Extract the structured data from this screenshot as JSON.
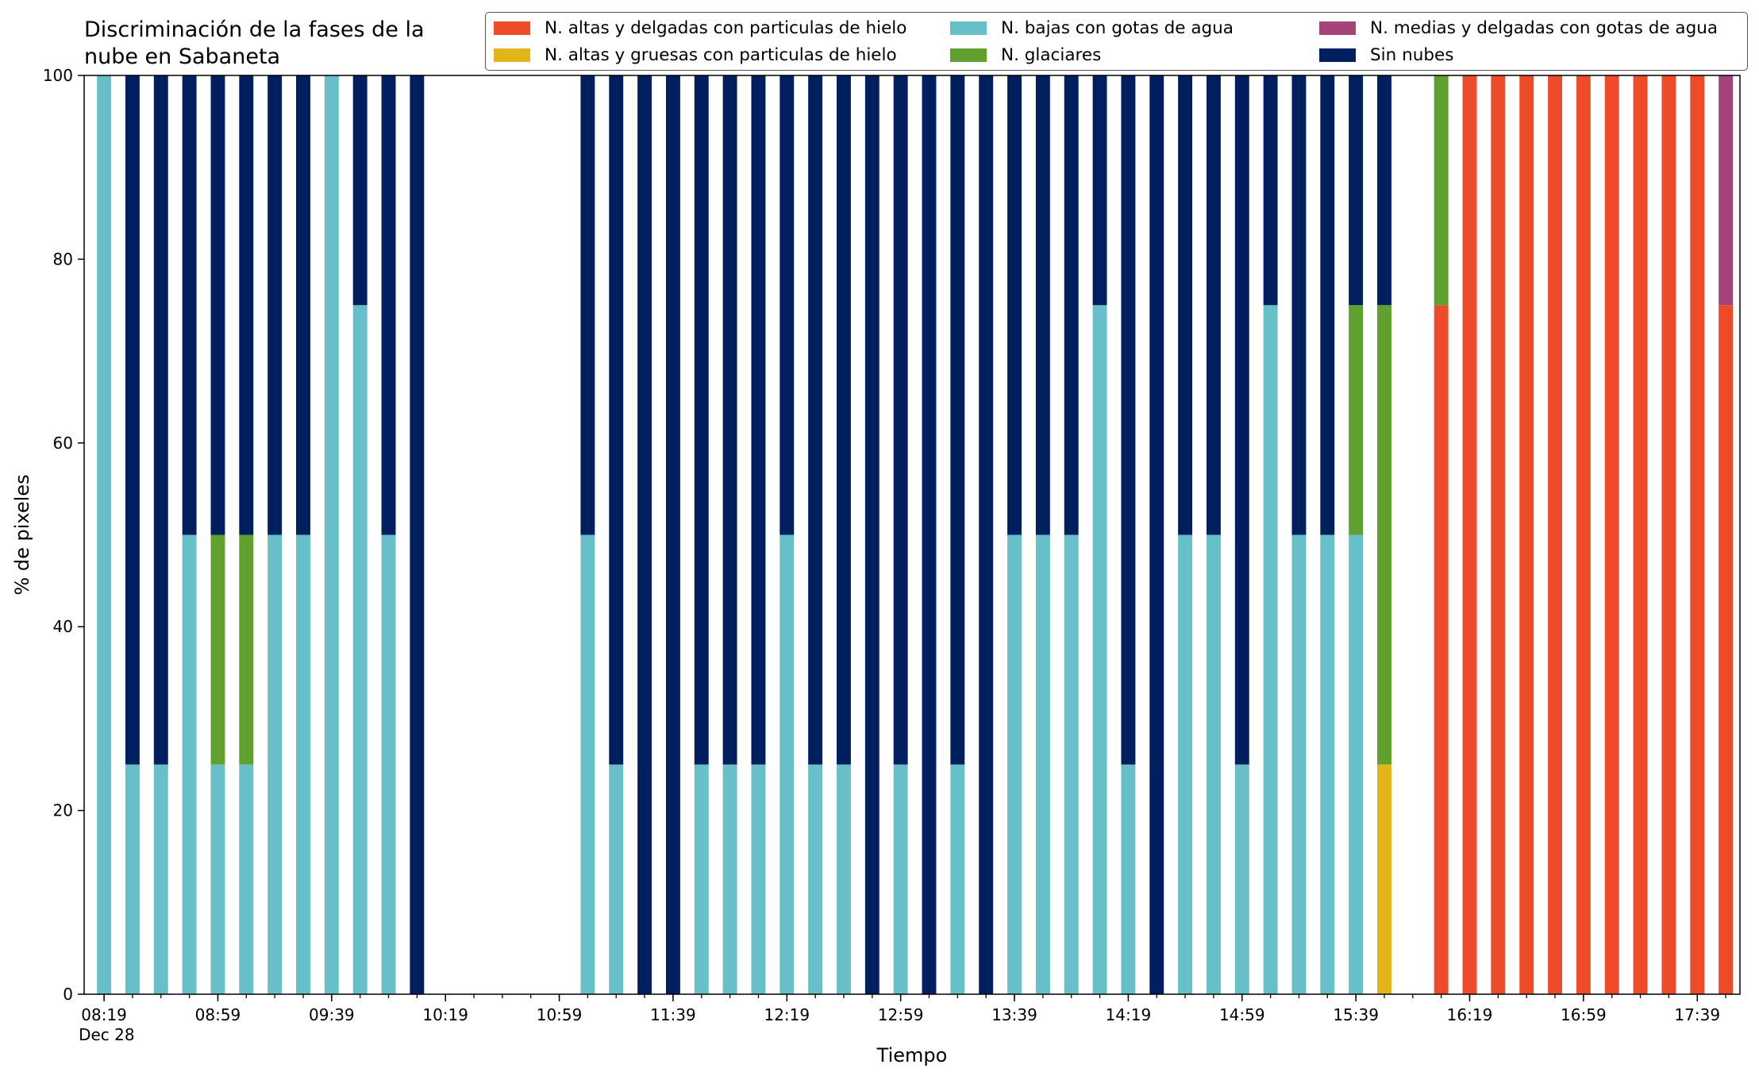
{
  "chart_data": {
    "type": "bar",
    "stacked": true,
    "title_lines": [
      "Discriminación de la fases de la",
      "nube en Sabaneta"
    ],
    "xlabel": "Tiempo",
    "ylabel": "% de pixeles",
    "ylim": [
      0,
      100
    ],
    "yticks": [
      0,
      20,
      40,
      60,
      80,
      100
    ],
    "xlim_minutes": [
      -7,
      575
    ],
    "bar_width_minutes": 5,
    "x_minor_tick_step_minutes": 10,
    "x_major_tick_labels": [
      "08:19",
      "08:59",
      "09:39",
      "10:19",
      "10:59",
      "11:39",
      "12:19",
      "12:59",
      "13:39",
      "14:19",
      "14:59",
      "15:39",
      "16:19",
      "16:59",
      "17:39"
    ],
    "x_major_tick_step_minutes": 40,
    "x_date_label": "Dec 28",
    "grid": false,
    "legend_position": "top-right",
    "x": [
      "08:19",
      "08:29",
      "08:39",
      "08:49",
      "08:59",
      "09:09",
      "09:19",
      "09:29",
      "09:39",
      "09:49",
      "09:59",
      "10:09",
      "11:09",
      "11:19",
      "11:29",
      "11:39",
      "11:49",
      "11:59",
      "12:09",
      "12:19",
      "12:29",
      "12:39",
      "12:49",
      "12:59",
      "13:09",
      "13:19",
      "13:29",
      "13:39",
      "13:49",
      "13:59",
      "14:09",
      "14:19",
      "14:29",
      "14:39",
      "14:49",
      "14:59",
      "15:09",
      "15:19",
      "15:29",
      "15:39",
      "15:49",
      "16:09",
      "16:19",
      "16:29",
      "16:39",
      "16:49",
      "16:59",
      "17:09",
      "17:19",
      "17:29",
      "17:39",
      "17:49"
    ],
    "series": [
      {
        "name": "N. altas y delgadas con particulas de hielo",
        "color": "#ee4b2b",
        "values": [
          0,
          0,
          0,
          0,
          0,
          0,
          0,
          0,
          0,
          0,
          0,
          0,
          0,
          0,
          0,
          0,
          0,
          0,
          0,
          0,
          0,
          0,
          0,
          0,
          0,
          0,
          0,
          0,
          0,
          0,
          0,
          0,
          0,
          0,
          0,
          0,
          0,
          0,
          0,
          0,
          0,
          75,
          100,
          100,
          100,
          100,
          100,
          100,
          100,
          100,
          100,
          75
        ]
      },
      {
        "name": "N. altas y gruesas con particulas de hielo",
        "color": "#e4b51a",
        "values": [
          0,
          0,
          0,
          0,
          0,
          0,
          0,
          0,
          0,
          0,
          0,
          0,
          0,
          0,
          0,
          0,
          0,
          0,
          0,
          0,
          0,
          0,
          0,
          0,
          0,
          0,
          0,
          0,
          0,
          0,
          0,
          0,
          0,
          0,
          0,
          0,
          0,
          0,
          0,
          0,
          25,
          0,
          0,
          0,
          0,
          0,
          0,
          0,
          0,
          0,
          0,
          0
        ]
      },
      {
        "name": "N. bajas con gotas de agua",
        "color": "#66bfc9",
        "values": [
          100,
          25,
          25,
          50,
          25,
          25,
          50,
          50,
          100,
          75,
          50,
          0,
          50,
          25,
          0,
          0,
          25,
          25,
          25,
          50,
          25,
          25,
          0,
          25,
          0,
          25,
          0,
          50,
          50,
          50,
          75,
          25,
          0,
          50,
          50,
          25,
          75,
          50,
          50,
          50,
          0,
          0,
          0,
          0,
          0,
          0,
          0,
          0,
          0,
          0,
          0,
          0
        ]
      },
      {
        "name": "N. glaciares",
        "color": "#5fa02e",
        "values": [
          0,
          0,
          0,
          0,
          25,
          25,
          0,
          0,
          0,
          0,
          0,
          0,
          0,
          0,
          0,
          0,
          0,
          0,
          0,
          0,
          0,
          0,
          0,
          0,
          0,
          0,
          0,
          0,
          0,
          0,
          0,
          0,
          0,
          0,
          0,
          0,
          0,
          0,
          0,
          25,
          50,
          25,
          0,
          0,
          0,
          0,
          0,
          0,
          0,
          0,
          0,
          0
        ]
      },
      {
        "name": "N. medias y delgadas con gotas de agua",
        "color": "#a3447a",
        "values": [
          0,
          0,
          0,
          0,
          0,
          0,
          0,
          0,
          0,
          0,
          0,
          0,
          0,
          0,
          0,
          0,
          0,
          0,
          0,
          0,
          0,
          0,
          0,
          0,
          0,
          0,
          0,
          0,
          0,
          0,
          0,
          0,
          0,
          0,
          0,
          0,
          0,
          0,
          0,
          0,
          0,
          0,
          0,
          0,
          0,
          0,
          0,
          0,
          0,
          0,
          0,
          25
        ]
      },
      {
        "name": "Sin nubes",
        "color": "#001f5f",
        "values": [
          0,
          75,
          75,
          50,
          50,
          50,
          50,
          50,
          0,
          25,
          50,
          100,
          50,
          75,
          100,
          100,
          75,
          75,
          75,
          50,
          75,
          75,
          100,
          75,
          100,
          75,
          100,
          50,
          50,
          50,
          25,
          75,
          100,
          50,
          50,
          75,
          25,
          50,
          50,
          25,
          25,
          0,
          0,
          0,
          0,
          0,
          0,
          0,
          0,
          0,
          0,
          0
        ]
      }
    ]
  }
}
